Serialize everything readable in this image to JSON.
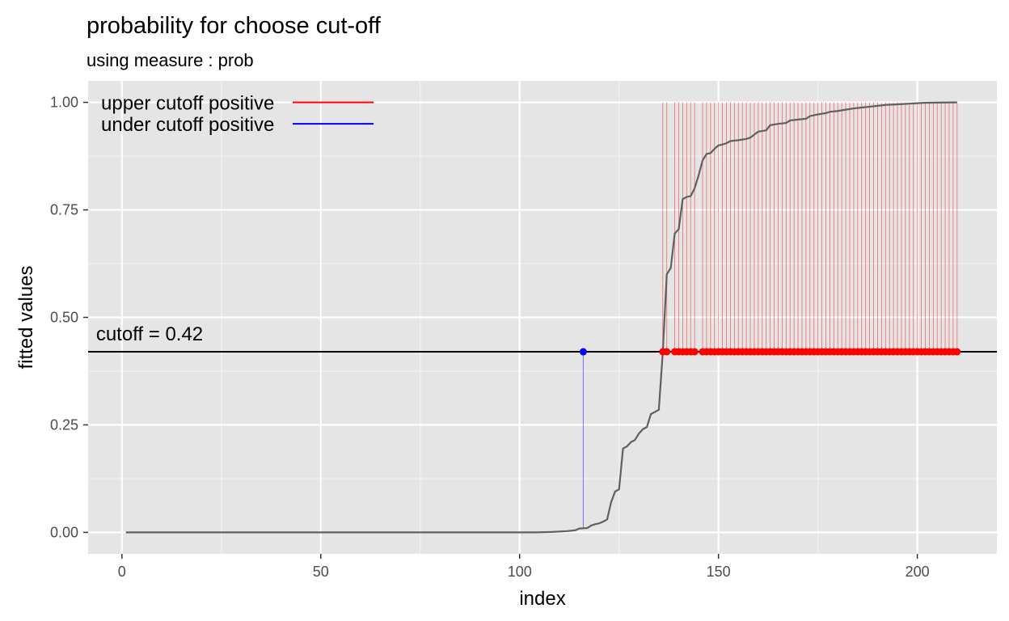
{
  "chart_data": {
    "type": "line",
    "title": "probability for choose cut-off",
    "subtitle": "using measure : prob",
    "xlabel": "index",
    "ylabel": "fitted values",
    "xlim": [
      -8.5,
      220
    ],
    "ylim": [
      -0.05,
      1.05
    ],
    "x_ticks": [
      0,
      50,
      100,
      150,
      200
    ],
    "y_ticks": [
      0,
      0.25,
      0.5,
      0.75,
      1
    ],
    "x_tick_labels": [
      "0",
      "50",
      "100",
      "150",
      "200"
    ],
    "y_tick_labels": [
      "0.00",
      "0.25",
      "0.50",
      "0.75",
      "1.00"
    ],
    "grid": true,
    "cutoff": 0.42,
    "cutoff_label": "cutoff = 0.42",
    "series": [
      {
        "name": "fitted",
        "color": "#606060",
        "points": [
          [
            1,
            0.0
          ],
          [
            100,
            0.0
          ],
          [
            104,
            0.0
          ],
          [
            108,
            0.001
          ],
          [
            110,
            0.002
          ],
          [
            112,
            0.003
          ],
          [
            114,
            0.005
          ],
          [
            115,
            0.009
          ],
          [
            117,
            0.01
          ],
          [
            118,
            0.016
          ],
          [
            119,
            0.019
          ],
          [
            120,
            0.021
          ],
          [
            121,
            0.025
          ],
          [
            122,
            0.03
          ],
          [
            123,
            0.07
          ],
          [
            124,
            0.095
          ],
          [
            125,
            0.1
          ],
          [
            126,
            0.195
          ],
          [
            127,
            0.2
          ],
          [
            128,
            0.21
          ],
          [
            129,
            0.215
          ],
          [
            130,
            0.23
          ],
          [
            131,
            0.24
          ],
          [
            132,
            0.245
          ],
          [
            133,
            0.275
          ],
          [
            134,
            0.28
          ],
          [
            135,
            0.285
          ],
          [
            136,
            0.42
          ],
          [
            137,
            0.6
          ],
          [
            138,
            0.615
          ],
          [
            139,
            0.695
          ],
          [
            140,
            0.705
          ],
          [
            141,
            0.775
          ],
          [
            142,
            0.78
          ],
          [
            143,
            0.782
          ],
          [
            144,
            0.8
          ],
          [
            145,
            0.83
          ],
          [
            146,
            0.865
          ],
          [
            147,
            0.88
          ],
          [
            148,
            0.882
          ],
          [
            149,
            0.892
          ],
          [
            150,
            0.9
          ],
          [
            151,
            0.902
          ],
          [
            152,
            0.905
          ],
          [
            153,
            0.91
          ],
          [
            155,
            0.912
          ],
          [
            157,
            0.915
          ],
          [
            158,
            0.918
          ],
          [
            159,
            0.925
          ],
          [
            160,
            0.932
          ],
          [
            162,
            0.935
          ],
          [
            163,
            0.947
          ],
          [
            165,
            0.95
          ],
          [
            167,
            0.952
          ],
          [
            168,
            0.958
          ],
          [
            170,
            0.96
          ],
          [
            172,
            0.962
          ],
          [
            173,
            0.968
          ],
          [
            175,
            0.972
          ],
          [
            177,
            0.975
          ],
          [
            178,
            0.978
          ],
          [
            180,
            0.98
          ],
          [
            182,
            0.983
          ],
          [
            184,
            0.986
          ],
          [
            186,
            0.988
          ],
          [
            188,
            0.99
          ],
          [
            190,
            0.992
          ],
          [
            192,
            0.994
          ],
          [
            194,
            0.995
          ],
          [
            196,
            0.996
          ],
          [
            198,
            0.997
          ],
          [
            200,
            0.998
          ],
          [
            202,
            0.999
          ],
          [
            205,
            0.9995
          ],
          [
            210,
            1.0
          ]
        ]
      }
    ],
    "markers": {
      "upper": {
        "name": "upper cutoff positive",
        "color": "#ff0000",
        "x": [
          136,
          137,
          139,
          140,
          141,
          142,
          143,
          144,
          146,
          147,
          148,
          149,
          150,
          151,
          152,
          153,
          154,
          155,
          156,
          157,
          158,
          159,
          160,
          161,
          162,
          163,
          164,
          165,
          166,
          167,
          168,
          169,
          170,
          171,
          172,
          173,
          174,
          175,
          176,
          177,
          178,
          179,
          180,
          181,
          182,
          183,
          184,
          185,
          186,
          187,
          188,
          189,
          190,
          191,
          192,
          193,
          194,
          195,
          196,
          197,
          198,
          199,
          200,
          201,
          202,
          203,
          204,
          205,
          206,
          207,
          208,
          209,
          210
        ]
      },
      "under": {
        "name": "under cutoff positive",
        "color": "#0000ff",
        "x": [
          116
        ]
      }
    },
    "legend": {
      "position": "top-left",
      "entries": [
        {
          "label": "upper cutoff positive",
          "color": "#ff0000"
        },
        {
          "label": "under cutoff positive",
          "color": "#0000ff"
        }
      ]
    }
  }
}
